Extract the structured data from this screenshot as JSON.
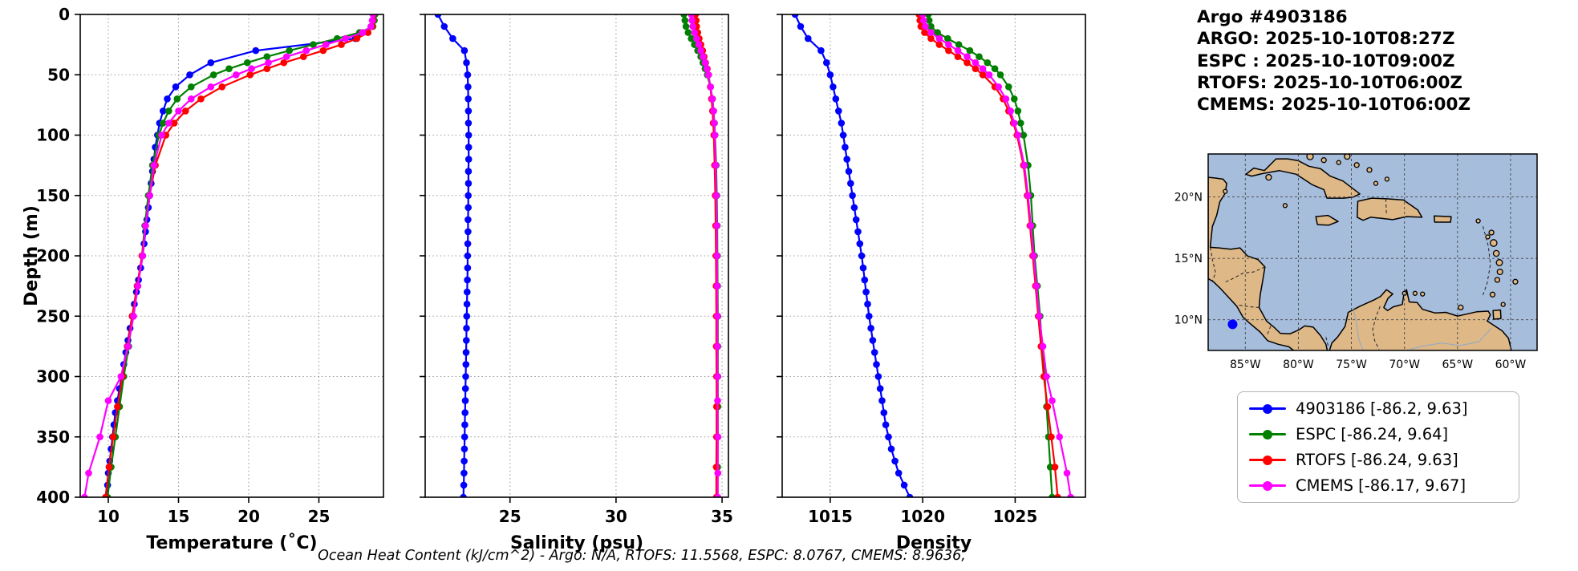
{
  "header": {
    "title": "Argo #4903186",
    "lines": [
      "ARGO: 2025-10-10T08:27Z",
      "ESPC : 2025-10-10T09:00Z",
      "RTOFS: 2025-10-10T06:00Z",
      "CMEMS: 2025-10-10T06:00Z"
    ]
  },
  "footer": "Ocean Heat Content (kJ/cm^2) - Argo: N/A,  RTOFS: 11.5568,  ESPC: 8.0767,  CMEMS: 8.9636,",
  "legend": {
    "entries": [
      {
        "label": "4903186 [-86.2, 9.63]",
        "color": "#0000ff"
      },
      {
        "label": "ESPC [-86.24, 9.64]",
        "color": "#008000"
      },
      {
        "label": "RTOFS [-86.24, 9.63]",
        "color": "#ff0000"
      },
      {
        "label": "CMEMS [-86.17, 9.67]",
        "color": "#ff00ff"
      }
    ]
  },
  "map": {
    "ocean_color": "#a6bddc",
    "land_color": "#deb887",
    "extent": {
      "lon_min": -88.5,
      "lon_max": -57.5,
      "lat_min": 7.5,
      "lat_max": 23.5
    },
    "lon_ticks": [
      "85°W",
      "80°W",
      "75°W",
      "70°W",
      "65°W",
      "60°W"
    ],
    "lon_tick_values": [
      -85,
      -80,
      -75,
      -70,
      -65,
      -60
    ],
    "lat_ticks": [
      "20°N",
      "15°N",
      "10°N"
    ],
    "lat_tick_values": [
      20,
      15,
      10
    ],
    "marker": {
      "lon": -86.2,
      "lat": 9.63,
      "color": "#0000ff"
    }
  },
  "chart_data": [
    {
      "type": "line",
      "title": "",
      "xlabel": "Temperature (˚C)",
      "ylabel": "Depth (m)",
      "xlim": [
        8,
        29.6
      ],
      "ylim": [
        0,
        400
      ],
      "xticks": [
        10,
        15,
        20,
        25
      ],
      "yticks": [
        0,
        50,
        100,
        150,
        200,
        250,
        300,
        350,
        400
      ],
      "y_inverted": true,
      "grid": true,
      "series": [
        {
          "name": "4903186",
          "color": "#0000ff",
          "depths": [
            0,
            10,
            20,
            30,
            40,
            50,
            60,
            70,
            80,
            90,
            100,
            110,
            120,
            130,
            140,
            150,
            160,
            170,
            180,
            190,
            200,
            210,
            220,
            230,
            240,
            250,
            260,
            270,
            280,
            290,
            300,
            310,
            320,
            330,
            340,
            350,
            360,
            370,
            380,
            390,
            400
          ],
          "values": [
            28.9,
            28.8,
            27.6,
            20.5,
            17.3,
            15.8,
            14.8,
            14.2,
            13.9,
            13.65,
            13.5,
            13.35,
            13.25,
            13.15,
            13.05,
            12.95,
            12.85,
            12.75,
            12.65,
            12.55,
            12.45,
            12.3,
            12.15,
            12.0,
            11.85,
            11.7,
            11.55,
            11.4,
            11.25,
            11.1,
            10.95,
            10.8,
            10.65,
            10.5,
            10.4,
            10.3,
            10.2,
            10.1,
            10.0,
            9.95,
            9.9
          ]
        },
        {
          "name": "ESPC",
          "color": "#008000",
          "depths": [
            0,
            5,
            10,
            15,
            20,
            25,
            30,
            35,
            40,
            45,
            50,
            60,
            70,
            80,
            90,
            100,
            125,
            150,
            175,
            200,
            225,
            250,
            275,
            300,
            325,
            350,
            375,
            400
          ],
          "values": [
            29.0,
            28.95,
            28.85,
            27.9,
            26.3,
            24.6,
            22.9,
            21.3,
            19.9,
            18.6,
            17.5,
            15.9,
            14.9,
            14.3,
            13.9,
            13.6,
            13.15,
            12.85,
            12.6,
            12.4,
            12.1,
            11.75,
            11.45,
            11.1,
            10.8,
            10.5,
            10.2,
            9.95
          ]
        },
        {
          "name": "RTOFS",
          "color": "#ff0000",
          "depths": [
            0,
            5,
            10,
            15,
            20,
            25,
            30,
            35,
            40,
            45,
            50,
            60,
            70,
            80,
            90,
            100,
            125,
            150,
            175,
            200,
            225,
            250,
            275,
            300,
            325,
            350,
            375,
            400
          ],
          "values": [
            28.9,
            28.85,
            28.8,
            28.5,
            27.7,
            26.6,
            25.3,
            23.9,
            22.5,
            21.3,
            20.1,
            18.1,
            16.6,
            15.5,
            14.7,
            14.1,
            13.35,
            12.95,
            12.65,
            12.4,
            12.05,
            11.7,
            11.35,
            11.0,
            10.65,
            10.35,
            10.05,
            9.8
          ]
        },
        {
          "name": "CMEMS",
          "color": "#ff00ff",
          "depths": [
            0,
            5,
            10,
            15,
            20,
            25,
            30,
            35,
            40,
            45,
            50,
            60,
            70,
            80,
            90,
            100,
            125,
            150,
            175,
            200,
            225,
            250,
            275,
            300,
            320,
            350,
            380,
            400
          ],
          "values": [
            28.85,
            28.8,
            28.7,
            28.1,
            26.9,
            25.5,
            24.1,
            22.7,
            21.4,
            20.2,
            19.1,
            17.3,
            15.9,
            15.0,
            14.3,
            13.8,
            13.25,
            12.95,
            12.65,
            12.45,
            12.1,
            11.8,
            11.4,
            10.9,
            10.0,
            9.4,
            8.6,
            8.3
          ]
        }
      ]
    },
    {
      "type": "line",
      "title": "",
      "xlabel": "Salinity (psu)",
      "ylabel": "",
      "xlim": [
        21.0,
        35.3
      ],
      "ylim": [
        0,
        400
      ],
      "xticks": [
        25,
        30,
        35
      ],
      "yticks": [
        0,
        50,
        100,
        150,
        200,
        250,
        300,
        350,
        400
      ],
      "y_inverted": true,
      "grid": true,
      "series": [
        {
          "name": "4903186",
          "color": "#0000ff",
          "depths": [
            0,
            10,
            20,
            30,
            40,
            50,
            60,
            70,
            80,
            90,
            100,
            110,
            120,
            130,
            140,
            150,
            160,
            170,
            180,
            190,
            200,
            210,
            220,
            230,
            240,
            250,
            260,
            270,
            280,
            290,
            300,
            310,
            320,
            330,
            340,
            350,
            360,
            370,
            380,
            390,
            400
          ],
          "values": [
            21.6,
            21.9,
            22.3,
            22.85,
            22.95,
            23.0,
            23.02,
            23.03,
            23.04,
            23.04,
            23.05,
            23.05,
            23.05,
            23.04,
            23.04,
            23.03,
            23.03,
            23.02,
            23.02,
            23.01,
            23.0,
            23.0,
            22.99,
            22.98,
            22.97,
            22.96,
            22.95,
            22.94,
            22.93,
            22.92,
            22.91,
            22.9,
            22.89,
            22.88,
            22.87,
            22.86,
            22.85,
            22.84,
            22.83,
            22.82,
            22.8
          ]
        },
        {
          "name": "ESPC",
          "color": "#008000",
          "depths": [
            0,
            5,
            10,
            15,
            20,
            25,
            30,
            35,
            40,
            45,
            50,
            60,
            70,
            80,
            90,
            100,
            125,
            150,
            175,
            200,
            225,
            250,
            275,
            300,
            325,
            350,
            375,
            400
          ],
          "values": [
            33.2,
            33.25,
            33.3,
            33.4,
            33.55,
            33.7,
            33.85,
            34.0,
            34.1,
            34.2,
            34.3,
            34.45,
            34.55,
            34.6,
            34.64,
            34.67,
            34.72,
            34.75,
            34.77,
            34.78,
            34.79,
            34.8,
            34.8,
            34.8,
            34.8,
            34.8,
            34.79,
            34.79
          ]
        },
        {
          "name": "RTOFS",
          "color": "#ff0000",
          "depths": [
            0,
            5,
            10,
            15,
            20,
            25,
            30,
            35,
            40,
            45,
            50,
            60,
            70,
            80,
            90,
            100,
            125,
            150,
            175,
            200,
            225,
            250,
            275,
            300,
            325,
            350,
            375,
            400
          ],
          "values": [
            33.75,
            33.78,
            33.8,
            33.85,
            33.92,
            34.0,
            34.08,
            34.15,
            34.22,
            34.3,
            34.36,
            34.45,
            34.5,
            34.55,
            34.58,
            34.61,
            34.65,
            34.68,
            34.7,
            34.71,
            34.72,
            34.73,
            34.73,
            34.74,
            34.74,
            34.74,
            34.73,
            34.73
          ]
        },
        {
          "name": "CMEMS",
          "color": "#ff00ff",
          "depths": [
            0,
            5,
            10,
            15,
            20,
            25,
            30,
            35,
            40,
            45,
            50,
            60,
            70,
            80,
            90,
            100,
            125,
            150,
            175,
            200,
            225,
            250,
            275,
            300,
            320,
            350,
            380,
            400
          ],
          "values": [
            33.55,
            33.58,
            33.62,
            33.7,
            33.8,
            33.9,
            34.0,
            34.1,
            34.2,
            34.28,
            34.35,
            34.46,
            34.54,
            34.6,
            34.63,
            34.66,
            34.7,
            34.73,
            34.75,
            34.76,
            34.77,
            34.78,
            34.78,
            34.79,
            34.79,
            34.8,
            34.8,
            34.8
          ]
        }
      ]
    },
    {
      "type": "line",
      "title": "",
      "xlabel": "Density",
      "ylabel": "",
      "xlim": [
        1012.4,
        1028.8
      ],
      "ylim": [
        0,
        400
      ],
      "xticks": [
        1015,
        1020,
        1025
      ],
      "yticks": [
        0,
        50,
        100,
        150,
        200,
        250,
        300,
        350,
        400
      ],
      "y_inverted": true,
      "grid": true,
      "series": [
        {
          "name": "4903186",
          "color": "#0000ff",
          "depths": [
            0,
            10,
            20,
            30,
            40,
            50,
            60,
            70,
            80,
            90,
            100,
            110,
            120,
            130,
            140,
            150,
            160,
            170,
            180,
            190,
            200,
            210,
            220,
            230,
            240,
            250,
            260,
            270,
            280,
            290,
            300,
            310,
            320,
            330,
            340,
            350,
            360,
            370,
            380,
            390,
            400
          ],
          "values": [
            1013.1,
            1013.4,
            1013.8,
            1014.5,
            1014.8,
            1015.0,
            1015.15,
            1015.3,
            1015.45,
            1015.6,
            1015.7,
            1015.8,
            1015.9,
            1016.0,
            1016.1,
            1016.2,
            1016.3,
            1016.4,
            1016.5,
            1016.6,
            1016.7,
            1016.78,
            1016.86,
            1016.94,
            1017.02,
            1017.1,
            1017.2,
            1017.3,
            1017.4,
            1017.5,
            1017.6,
            1017.7,
            1017.8,
            1017.9,
            1018.0,
            1018.15,
            1018.3,
            1018.5,
            1018.7,
            1019.0,
            1019.3
          ]
        },
        {
          "name": "ESPC",
          "color": "#008000",
          "depths": [
            0,
            5,
            10,
            15,
            20,
            25,
            30,
            35,
            40,
            45,
            50,
            60,
            70,
            80,
            90,
            100,
            125,
            150,
            175,
            200,
            225,
            250,
            275,
            300,
            325,
            350,
            375,
            400
          ],
          "values": [
            1020.3,
            1020.35,
            1020.45,
            1020.8,
            1021.35,
            1021.95,
            1022.55,
            1023.05,
            1023.5,
            1023.9,
            1024.2,
            1024.65,
            1024.95,
            1025.15,
            1025.3,
            1025.45,
            1025.7,
            1025.85,
            1025.95,
            1026.05,
            1026.2,
            1026.35,
            1026.45,
            1026.6,
            1026.7,
            1026.8,
            1026.9,
            1027.0
          ]
        },
        {
          "name": "RTOFS",
          "color": "#ff0000",
          "depths": [
            0,
            5,
            10,
            15,
            20,
            25,
            30,
            35,
            40,
            45,
            50,
            60,
            70,
            80,
            90,
            100,
            125,
            150,
            175,
            200,
            225,
            250,
            275,
            300,
            325,
            350,
            375,
            400
          ],
          "values": [
            1019.8,
            1019.85,
            1019.9,
            1020.1,
            1020.45,
            1020.9,
            1021.4,
            1021.9,
            1022.4,
            1022.85,
            1023.25,
            1023.9,
            1024.35,
            1024.65,
            1024.9,
            1025.1,
            1025.45,
            1025.65,
            1025.8,
            1025.95,
            1026.1,
            1026.25,
            1026.4,
            1026.55,
            1026.75,
            1026.95,
            1027.15,
            1027.3
          ]
        },
        {
          "name": "CMEMS",
          "color": "#ff00ff",
          "depths": [
            0,
            5,
            10,
            15,
            20,
            25,
            30,
            35,
            40,
            45,
            50,
            60,
            70,
            80,
            90,
            100,
            125,
            150,
            175,
            200,
            225,
            250,
            275,
            300,
            320,
            350,
            380,
            400
          ],
          "values": [
            1020.0,
            1020.05,
            1020.15,
            1020.45,
            1020.9,
            1021.4,
            1021.9,
            1022.4,
            1022.85,
            1023.25,
            1023.6,
            1024.1,
            1024.5,
            1024.75,
            1024.95,
            1025.15,
            1025.5,
            1025.7,
            1025.85,
            1026.0,
            1026.15,
            1026.3,
            1026.5,
            1026.7,
            1027.0,
            1027.4,
            1027.8,
            1028.0
          ]
        }
      ]
    }
  ]
}
